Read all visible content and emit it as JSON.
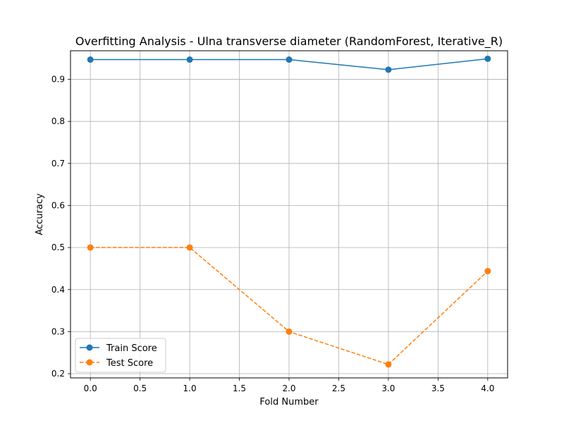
{
  "chart_data": {
    "type": "line",
    "title": "Overfitting Analysis - Ulna transverse diameter (RandomForest, Iterative_R)",
    "xlabel": "Fold Number",
    "ylabel": "Accuracy",
    "x": [
      0,
      1,
      2,
      3,
      4
    ],
    "xlim": [
      -0.2,
      4.2
    ],
    "ylim": [
      0.19,
      0.968
    ],
    "x_ticks": [
      "0.0",
      "0.5",
      "1.0",
      "1.5",
      "2.0",
      "2.5",
      "3.0",
      "3.5",
      "4.0"
    ],
    "y_ticks": [
      "0.2",
      "0.3",
      "0.4",
      "0.5",
      "0.6",
      "0.7",
      "0.8",
      "0.9"
    ],
    "grid": true,
    "legend_position": "lower-left",
    "series": [
      {
        "name": "Train Score",
        "values": [
          0.947,
          0.947,
          0.947,
          0.923,
          0.949
        ],
        "color": "#1f77b4",
        "line_style": "solid",
        "marker": "circle"
      },
      {
        "name": "Test Score",
        "values": [
          0.5,
          0.5,
          0.3,
          0.222,
          0.444
        ],
        "color": "#ff7f0e",
        "line_style": "dashed",
        "marker": "circle"
      }
    ]
  }
}
